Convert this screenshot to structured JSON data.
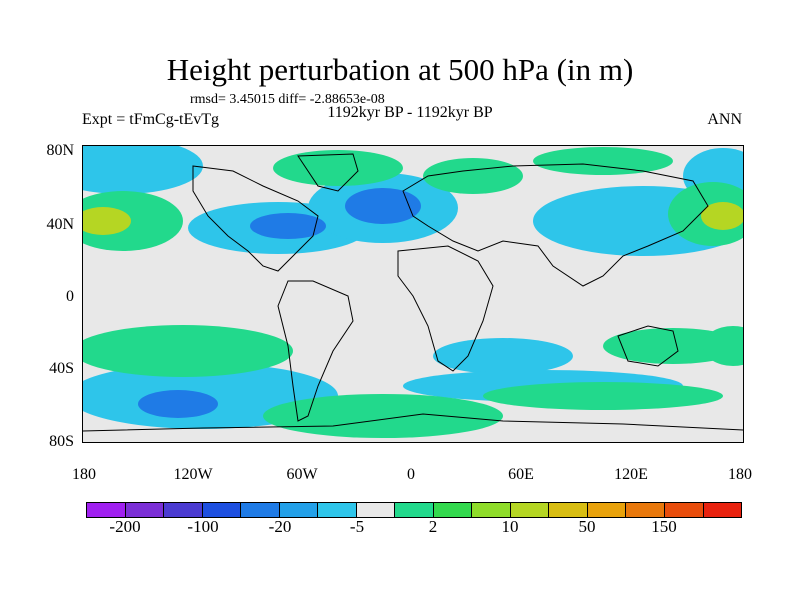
{
  "header": {
    "title": "Height perturbation at 500 hPa (in m)",
    "stats": "rmsd= 3.45015 diff= -2.88653e-08",
    "expt": "Expt = tFmCg-tEvTg",
    "period": "1192kyr BP - 1192kyr BP",
    "season": "ANN"
  },
  "axes": {
    "y_labels": [
      "80N",
      "40N",
      "0",
      "40S",
      "80S"
    ],
    "x_labels": [
      "180",
      "120W",
      "60W",
      "0",
      "60E",
      "120E",
      "180"
    ]
  },
  "colorbar": {
    "colors": [
      "#a020f0",
      "#7b2fd6",
      "#4b3bd1",
      "#1d4fe0",
      "#1f7be6",
      "#23a0e8",
      "#2ec5ea",
      "#e8e8e8",
      "#22d98c",
      "#33d94e",
      "#8fdc2a",
      "#b5d623",
      "#d8bd12",
      "#e8a20c",
      "#e8780c",
      "#e84d0c",
      "#e8220f"
    ],
    "labels": [
      "-200",
      "-100",
      "-20",
      "-5",
      "2",
      "10",
      "50",
      "150"
    ]
  },
  "map": {
    "background": "#e8e8e8"
  }
}
